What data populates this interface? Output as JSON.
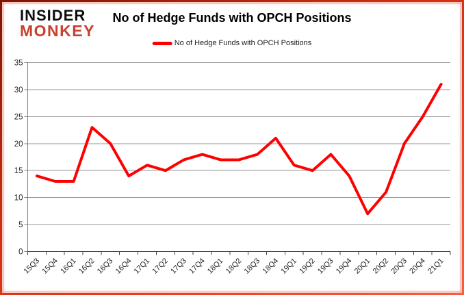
{
  "brand": {
    "line1": "INSIDER",
    "line2": "MONKEY"
  },
  "header": {
    "title": "No of Hedge Funds with OPCH Positions"
  },
  "legend": {
    "label": "No of Hedge Funds with OPCH Positions"
  },
  "colors": {
    "series": "#ff0000",
    "brand_black": "#0d0d0d",
    "brand_red": "#c8402e",
    "gridline": "#969696",
    "y_axis": "#7f7f7f",
    "x_axis": "#404040",
    "label_text": "#1f1f1f",
    "frame_border": "#c52c10"
  },
  "chart_data": {
    "type": "line",
    "title": "No of Hedge Funds with OPCH Positions",
    "xlabel": "",
    "ylabel": "",
    "categories": [
      "15Q3",
      "15Q4",
      "16Q1",
      "16Q2",
      "16Q3",
      "16Q4",
      "17Q1",
      "17Q2",
      "17Q3",
      "17Q4",
      "18Q1",
      "18Q2",
      "18Q3",
      "18Q4",
      "19Q1",
      "19Q2",
      "19Q3",
      "19Q4",
      "20Q1",
      "20Q2",
      "20Q3",
      "20Q4",
      "21Q1"
    ],
    "series": [
      {
        "name": "No of Hedge Funds with OPCH Positions",
        "values": [
          14,
          13,
          13,
          23,
          20,
          14,
          16,
          15,
          17,
          18,
          17,
          17,
          18,
          21,
          16,
          15,
          18,
          14,
          7,
          11,
          20,
          25,
          31
        ]
      }
    ],
    "ylim": [
      0,
      35
    ],
    "ytick_interval": 5,
    "grid": true,
    "legend_position": "top"
  }
}
